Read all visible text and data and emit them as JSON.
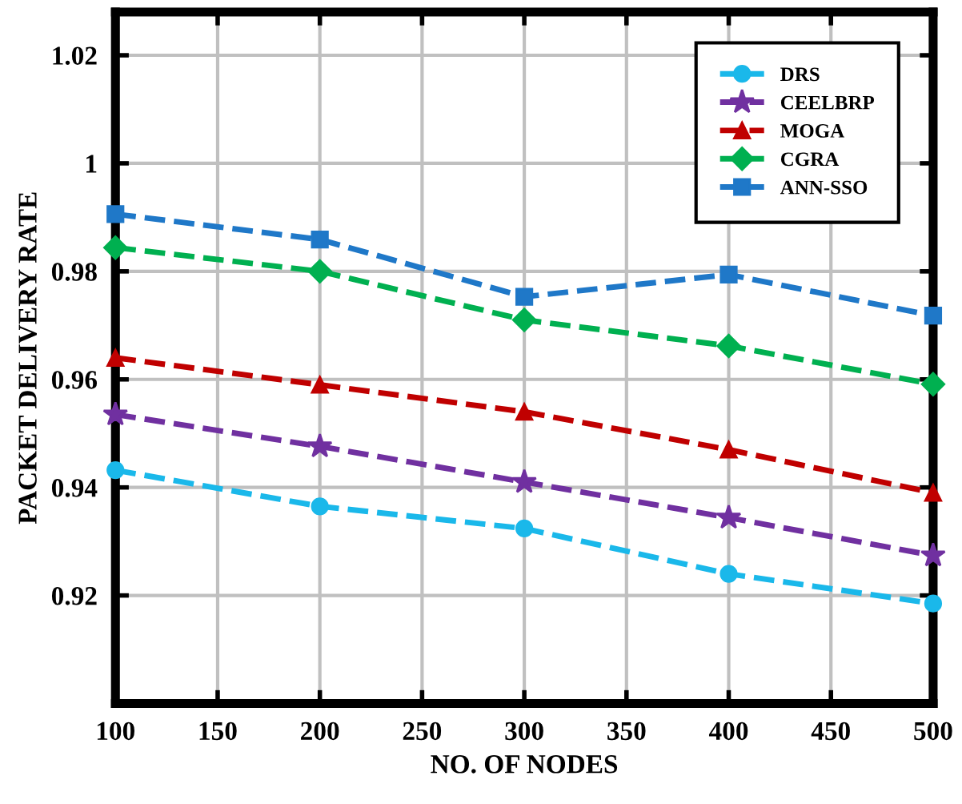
{
  "chart_data": {
    "type": "line",
    "xlabel": "NO. OF NODES",
    "ylabel": "PACKET DELIVERY RATE",
    "x": [
      100,
      200,
      300,
      400,
      500
    ],
    "series": [
      {
        "name": "DRS",
        "color": "#1ab8ea",
        "marker": "circle",
        "values": [
          0.9432,
          0.9365,
          0.9324,
          0.924,
          0.9185
        ]
      },
      {
        "name": "CEELBRP",
        "color": "#7030a0",
        "marker": "star",
        "values": [
          0.9535,
          0.9476,
          0.941,
          0.9344,
          0.9274
        ]
      },
      {
        "name": "MOGA",
        "color": "#c00000",
        "marker": "triangle",
        "values": [
          0.964,
          0.959,
          0.954,
          0.947,
          0.939
        ]
      },
      {
        "name": "CGRA",
        "color": "#00b050",
        "marker": "diamond",
        "values": [
          0.9844,
          0.98,
          0.971,
          0.9662,
          0.9591
        ]
      },
      {
        "name": "ANN-SSO",
        "color": "#1f78c8",
        "marker": "square",
        "values": [
          0.9906,
          0.9859,
          0.9753,
          0.9794,
          0.9718
        ]
      }
    ],
    "xlim": [
      100,
      500
    ],
    "xticks": [
      100,
      150,
      200,
      250,
      300,
      350,
      400,
      450,
      500
    ],
    "ylim": [
      0.9,
      1.028
    ],
    "yticks": [
      0.92,
      0.94,
      0.96,
      0.98,
      {
        "value": 1,
        "label": "1"
      },
      1.02
    ],
    "grid": true,
    "legend": "top right",
    "line_style": "dashed"
  }
}
